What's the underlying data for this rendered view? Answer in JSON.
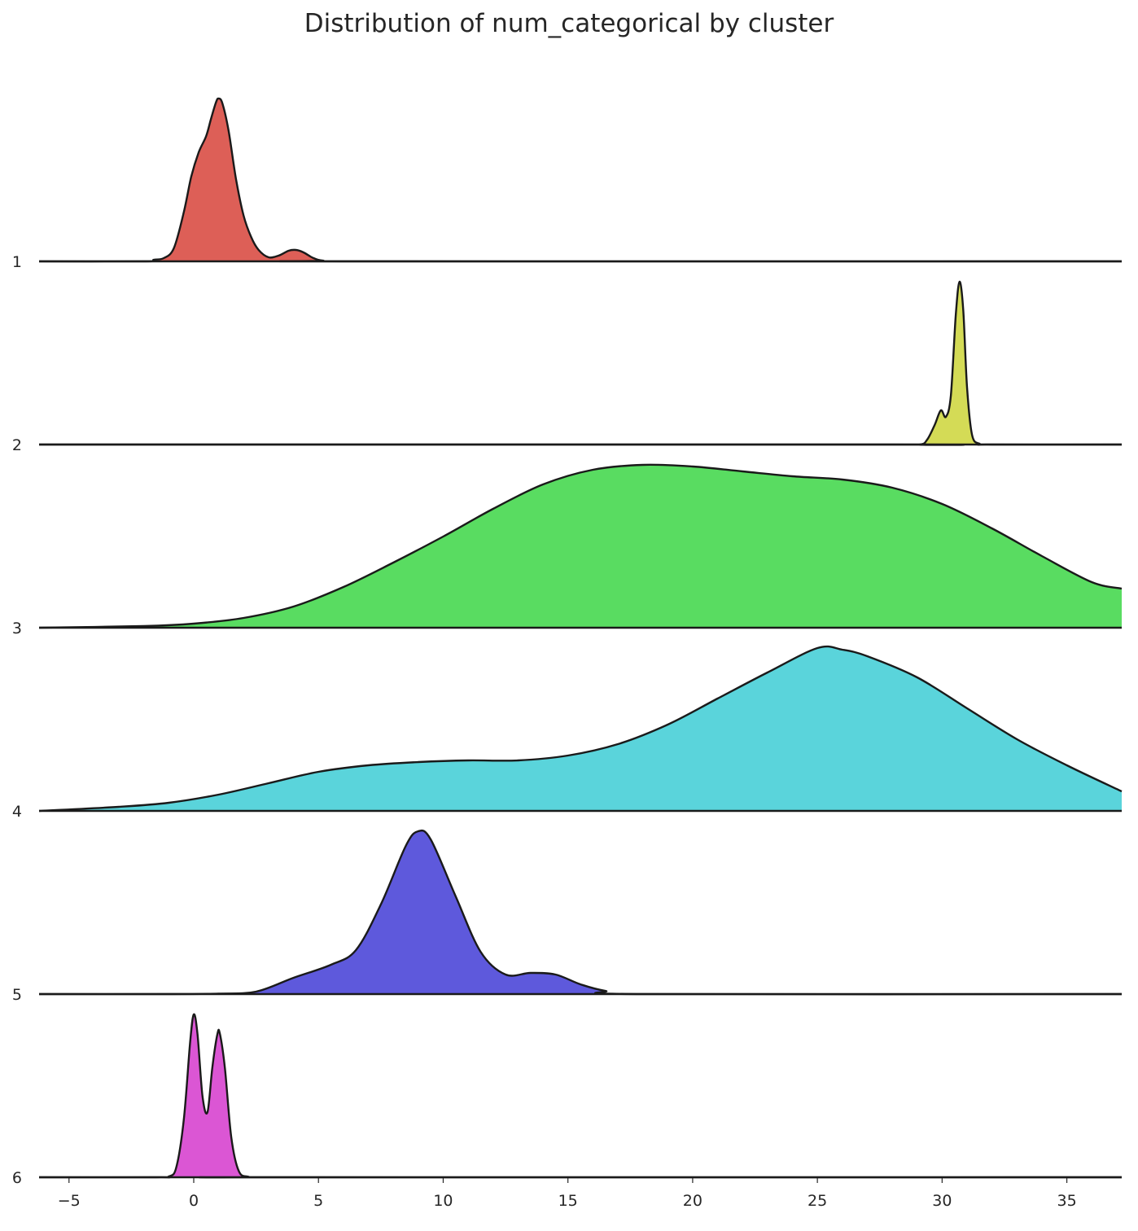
{
  "chart_data": {
    "type": "area",
    "title": "Distribution of num_categorical by cluster",
    "xlabel": "",
    "ylabel": "",
    "xlim": [
      -6.2,
      37.2
    ],
    "xticks": [
      -5,
      0,
      5,
      10,
      15,
      20,
      25,
      30,
      35
    ],
    "xtick_labels": [
      "−5",
      "0",
      "5",
      "10",
      "15",
      "20",
      "25",
      "30",
      "35"
    ],
    "grid": false,
    "legend": "none",
    "series": [
      {
        "label": "1",
        "color": "#dd5f57",
        "points": [
          [
            -6.2,
            0
          ],
          [
            -2,
            0
          ],
          [
            -1.6,
            0.01
          ],
          [
            -1.2,
            0.02
          ],
          [
            -0.8,
            0.08
          ],
          [
            -0.4,
            0.3
          ],
          [
            -0.1,
            0.52
          ],
          [
            0.2,
            0.67
          ],
          [
            0.5,
            0.77
          ],
          [
            0.7,
            0.88
          ],
          [
            0.9,
            0.98
          ],
          [
            1.0,
            1.0
          ],
          [
            1.15,
            0.97
          ],
          [
            1.4,
            0.8
          ],
          [
            1.7,
            0.5
          ],
          [
            2.0,
            0.28
          ],
          [
            2.3,
            0.15
          ],
          [
            2.6,
            0.07
          ],
          [
            3.0,
            0.025
          ],
          [
            3.4,
            0.035
          ],
          [
            3.8,
            0.065
          ],
          [
            4.1,
            0.07
          ],
          [
            4.4,
            0.055
          ],
          [
            4.8,
            0.02
          ],
          [
            5.2,
            0.004
          ],
          [
            6,
            0
          ],
          [
            37.2,
            0
          ]
        ]
      },
      {
        "label": "2",
        "color": "#d4db56",
        "points": [
          [
            -6.2,
            0
          ],
          [
            28,
            0
          ],
          [
            29.1,
            0
          ],
          [
            29.4,
            0.03
          ],
          [
            29.7,
            0.12
          ],
          [
            29.95,
            0.21
          ],
          [
            30.15,
            0.17
          ],
          [
            30.35,
            0.3
          ],
          [
            30.55,
            0.8
          ],
          [
            30.7,
            1.0
          ],
          [
            30.85,
            0.82
          ],
          [
            31.0,
            0.35
          ],
          [
            31.2,
            0.06
          ],
          [
            31.5,
            0.005
          ],
          [
            32,
            0
          ],
          [
            37.2,
            0
          ]
        ]
      },
      {
        "label": "3",
        "color": "#59dc61",
        "points": [
          [
            -6.2,
            0
          ],
          [
            -2,
            0.01
          ],
          [
            0,
            0.025
          ],
          [
            2,
            0.06
          ],
          [
            4,
            0.13
          ],
          [
            6,
            0.25
          ],
          [
            8,
            0.4
          ],
          [
            10,
            0.56
          ],
          [
            12,
            0.73
          ],
          [
            14,
            0.88
          ],
          [
            16,
            0.97
          ],
          [
            18,
            1.0
          ],
          [
            20,
            0.99
          ],
          [
            22,
            0.96
          ],
          [
            24,
            0.93
          ],
          [
            26,
            0.91
          ],
          [
            28,
            0.86
          ],
          [
            30,
            0.76
          ],
          [
            32,
            0.61
          ],
          [
            34,
            0.44
          ],
          [
            36,
            0.28
          ],
          [
            37.2,
            0.24
          ]
        ]
      },
      {
        "label": "4",
        "color": "#5ad4db",
        "points": [
          [
            -6.2,
            0
          ],
          [
            -3,
            0.025
          ],
          [
            -1,
            0.05
          ],
          [
            1,
            0.1
          ],
          [
            3,
            0.17
          ],
          [
            5,
            0.24
          ],
          [
            7,
            0.28
          ],
          [
            9,
            0.3
          ],
          [
            11,
            0.31
          ],
          [
            13,
            0.31
          ],
          [
            15,
            0.34
          ],
          [
            17,
            0.41
          ],
          [
            19,
            0.53
          ],
          [
            21,
            0.69
          ],
          [
            23,
            0.85
          ],
          [
            25,
            1.0
          ],
          [
            26,
            0.99
          ],
          [
            27,
            0.95
          ],
          [
            29,
            0.82
          ],
          [
            31,
            0.63
          ],
          [
            33,
            0.44
          ],
          [
            35,
            0.28
          ],
          [
            37.2,
            0.12
          ]
        ]
      },
      {
        "label": "5",
        "color": "#5e59dc",
        "points": [
          [
            -6.2,
            0
          ],
          [
            -1,
            0
          ],
          [
            1,
            0.003
          ],
          [
            2.5,
            0.015
          ],
          [
            4,
            0.1
          ],
          [
            5.5,
            0.18
          ],
          [
            6.5,
            0.27
          ],
          [
            7.5,
            0.55
          ],
          [
            8.5,
            0.91
          ],
          [
            9,
            1.0
          ],
          [
            9.5,
            0.95
          ],
          [
            10.5,
            0.6
          ],
          [
            11.5,
            0.26
          ],
          [
            12.5,
            0.12
          ],
          [
            13.5,
            0.13
          ],
          [
            14.5,
            0.12
          ],
          [
            15.5,
            0.06
          ],
          [
            16.5,
            0.02
          ],
          [
            18,
            0
          ],
          [
            37.2,
            0
          ]
        ]
      },
      {
        "label": "6",
        "color": "#db56d4",
        "points": [
          [
            -6.2,
            0
          ],
          [
            -1.5,
            0
          ],
          [
            -1.0,
            0.005
          ],
          [
            -0.7,
            0.06
          ],
          [
            -0.4,
            0.35
          ],
          [
            -0.15,
            0.82
          ],
          [
            0.0,
            1.0
          ],
          [
            0.15,
            0.88
          ],
          [
            0.35,
            0.5
          ],
          [
            0.55,
            0.4
          ],
          [
            0.75,
            0.68
          ],
          [
            0.95,
            0.88
          ],
          [
            1.05,
            0.88
          ],
          [
            1.25,
            0.67
          ],
          [
            1.5,
            0.25
          ],
          [
            1.8,
            0.04
          ],
          [
            2.2,
            0.003
          ],
          [
            3,
            0
          ],
          [
            37.2,
            0
          ]
        ]
      }
    ]
  }
}
